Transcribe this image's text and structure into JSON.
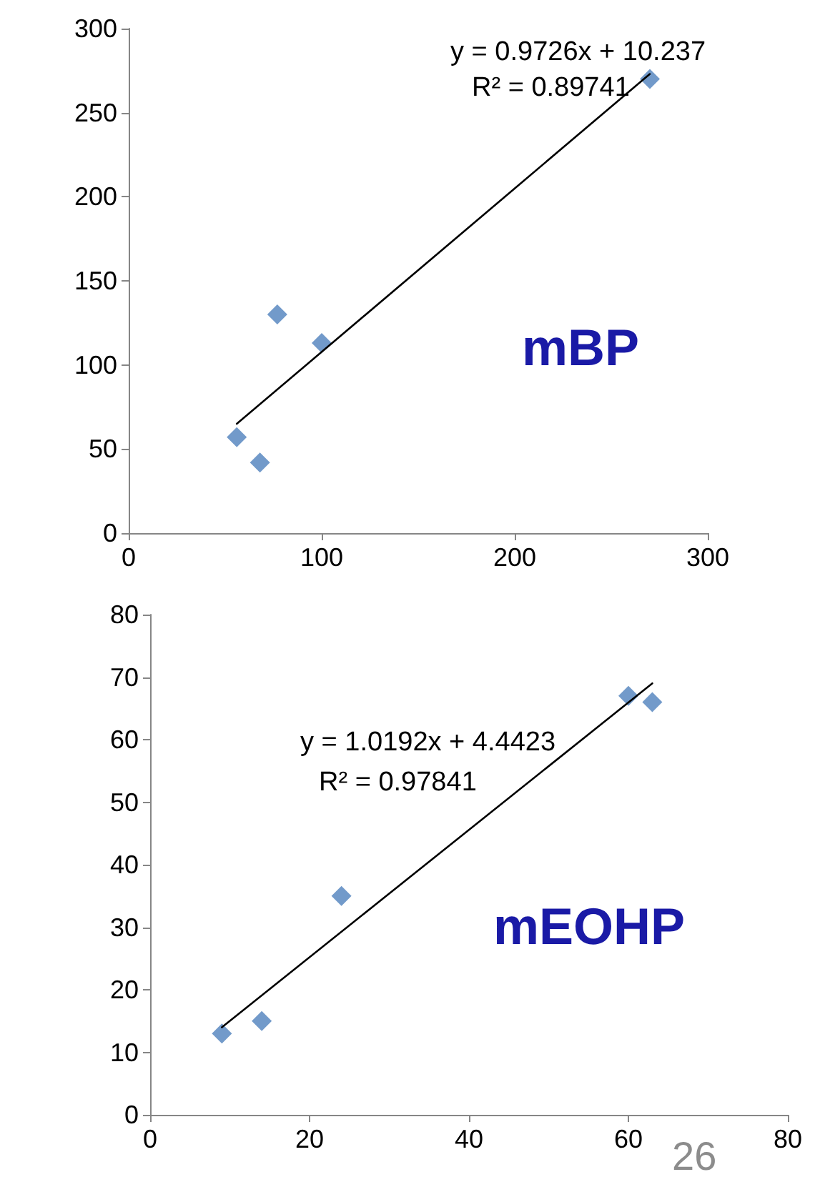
{
  "chart_data": [
    {
      "type": "scatter",
      "marker": "diamond",
      "grid": false,
      "annotations": [
        "y = 0.9726x + 10.237",
        "R² = 0.89741",
        "mBP"
      ],
      "xlim": [
        0,
        300
      ],
      "xticks": [
        0,
        100,
        200,
        300
      ],
      "ylim": [
        0,
        300
      ],
      "yticks": [
        0,
        50,
        100,
        150,
        200,
        250,
        300
      ],
      "series": [
        {
          "color": "#4f81bd",
          "x": [
            56,
            68,
            77,
            100,
            270
          ],
          "values": [
            57,
            42,
            130,
            113,
            270
          ]
        },
        {
          "type": "line",
          "color": "#000000",
          "marker": "none",
          "x": [
            56,
            270
          ],
          "values": [
            65,
            273
          ]
        }
      ]
    },
    {
      "type": "scatter",
      "marker": "diamond",
      "grid": false,
      "annotations": [
        "y = 1.0192x + 4.4423",
        "R² = 0.97841",
        "mEOHP",
        "26"
      ],
      "xlim": [
        0,
        80
      ],
      "xticks": [
        0,
        20,
        40,
        60,
        80
      ],
      "ylim": [
        0,
        80
      ],
      "yticks": [
        0,
        10,
        20,
        30,
        40,
        50,
        60,
        70,
        80
      ],
      "series": [
        {
          "color": "#4f81bd",
          "x": [
            9,
            14,
            24,
            60,
            63
          ],
          "values": [
            13,
            15,
            35,
            67,
            66
          ]
        },
        {
          "type": "line",
          "color": "#000000",
          "marker": "none",
          "x": [
            9,
            63
          ],
          "values": [
            14,
            69
          ]
        }
      ]
    }
  ]
}
